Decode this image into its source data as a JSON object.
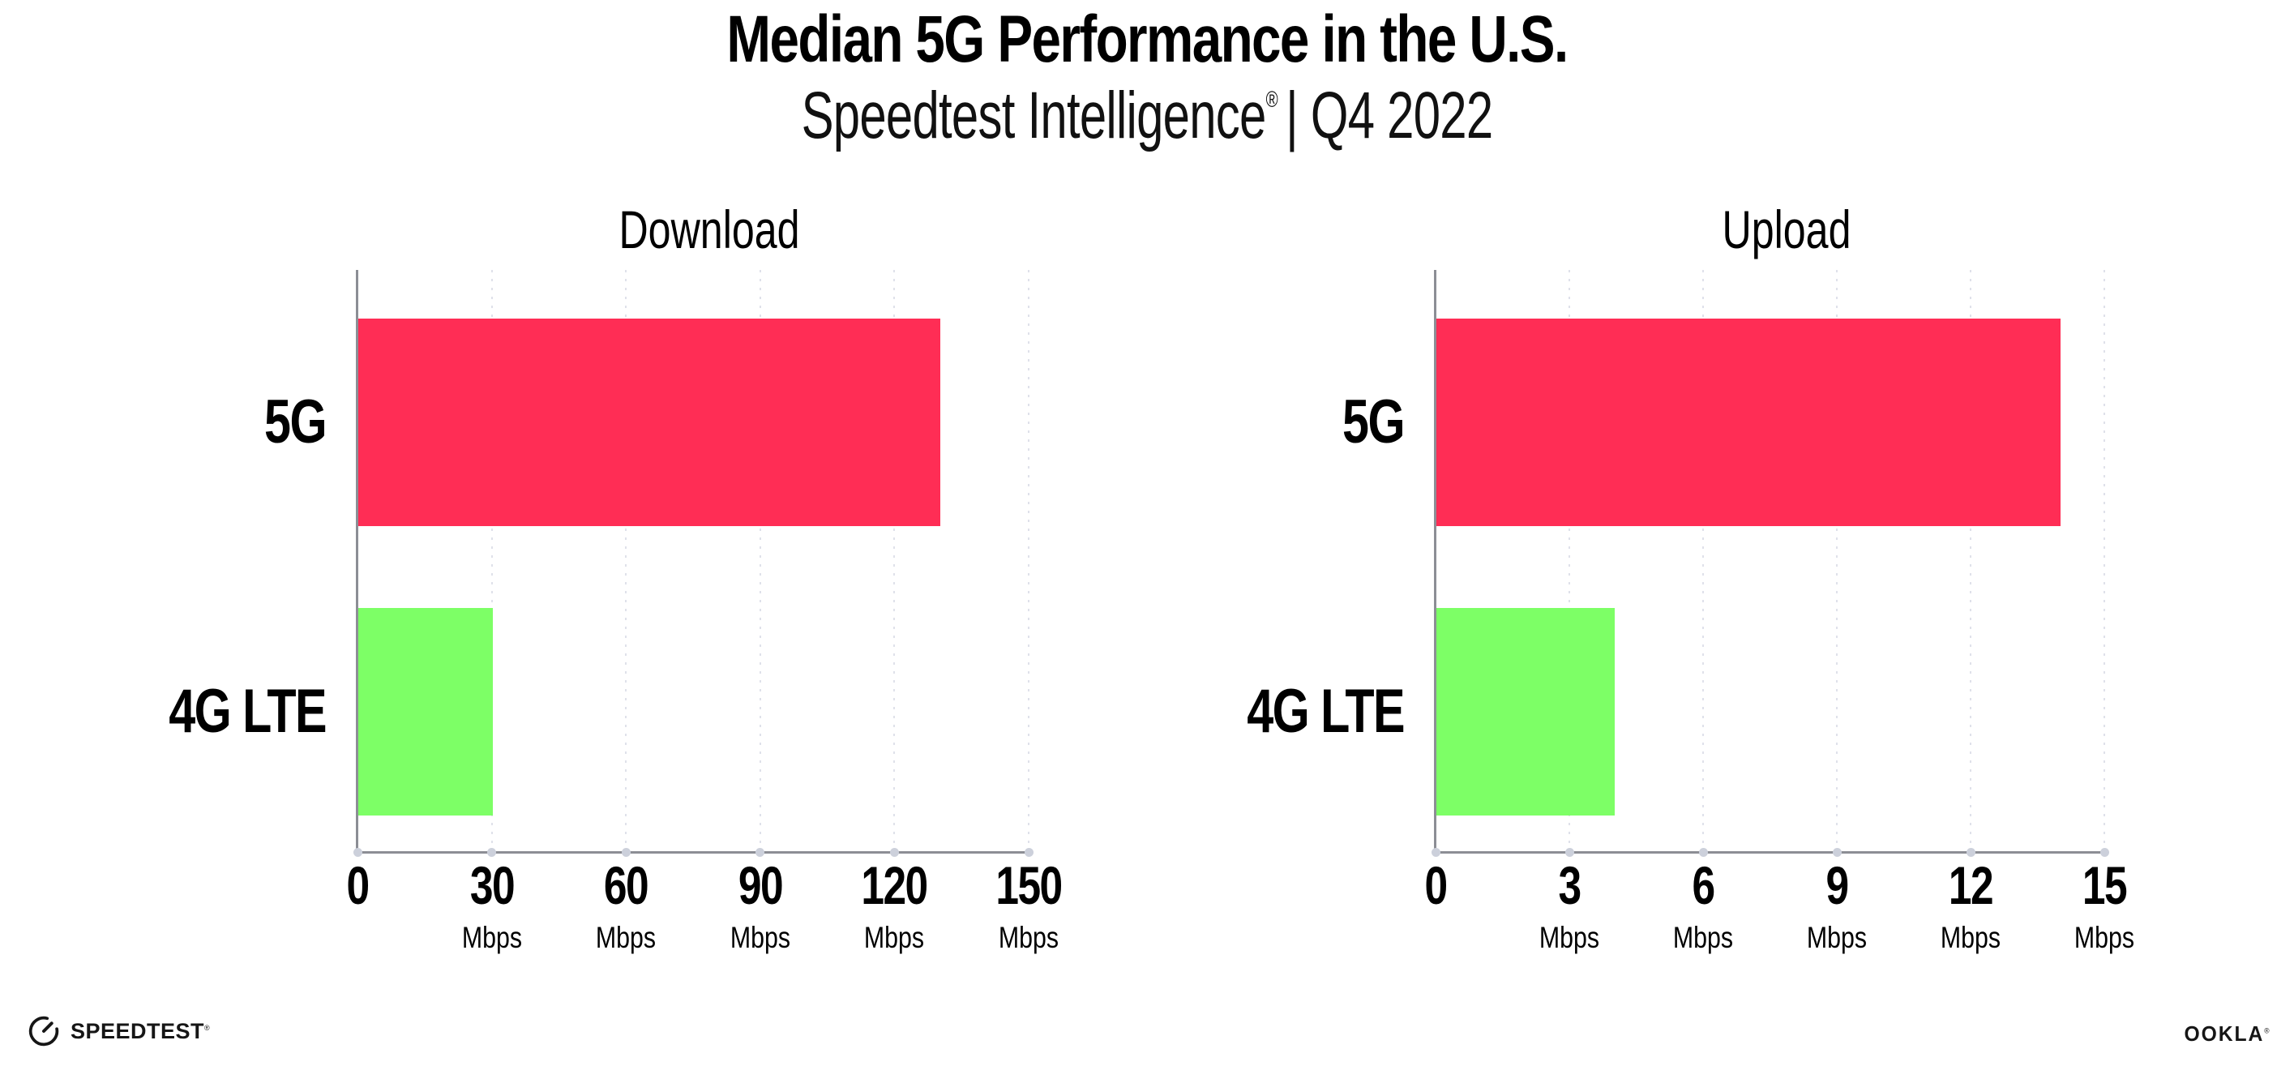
{
  "header": {
    "title": "Median 5G Performance in the U.S.",
    "subtitle_brand": "Speedtest Intelligence",
    "subtitle_reg": "®",
    "subtitle_period": "| Q4 2022"
  },
  "chart_data": [
    {
      "type": "bar",
      "orientation": "horizontal",
      "title": "Download",
      "categories": [
        "5G",
        "4G LTE"
      ],
      "values": [
        130,
        30
      ],
      "unit": "Mbps",
      "xlim": [
        0,
        150
      ],
      "xticks": [
        0,
        30,
        60,
        90,
        120,
        150
      ],
      "bar_colors": [
        "#FF2D55",
        "#7DFF66"
      ],
      "grid": "dotted-vertical",
      "legend": "none"
    },
    {
      "type": "bar",
      "orientation": "horizontal",
      "title": "Upload",
      "categories": [
        "5G",
        "4G LTE"
      ],
      "values": [
        14,
        4
      ],
      "unit": "Mbps",
      "xlim": [
        0,
        15
      ],
      "xticks": [
        0,
        3,
        6,
        9,
        12,
        15
      ],
      "bar_colors": [
        "#FF2D55",
        "#7DFF66"
      ],
      "grid": "dotted-vertical",
      "legend": "none"
    }
  ],
  "footer": {
    "speedtest_label": "SPEEDTEST",
    "speedtest_reg": "®",
    "ookla_label": "OOKLA",
    "ookla_reg": "®"
  },
  "colors": {
    "bar_5g": "#FF2D55",
    "bar_4g_lte": "#7DFF66",
    "axis": "#8C8E95",
    "gridline": "#DFE1EA",
    "tick_dot": "#CCD0DB",
    "background": "#FFFFFF",
    "text": "#000000"
  }
}
